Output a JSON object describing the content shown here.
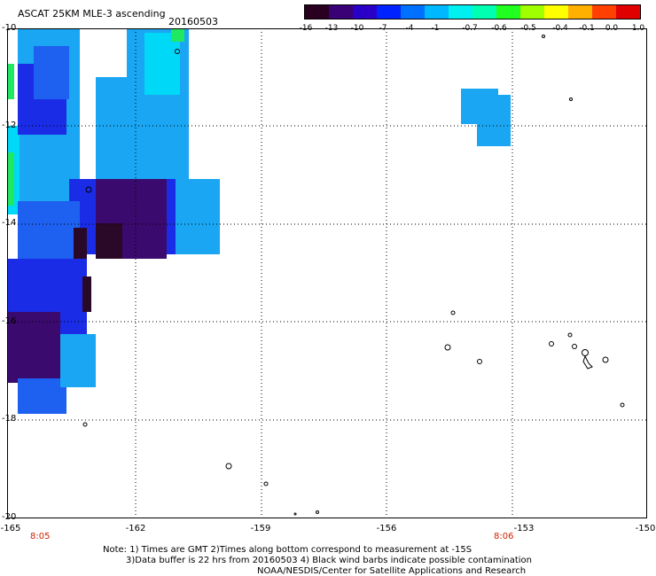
{
  "header": {
    "title": "ASCAT 25KM MLE-3 ascending",
    "date": "20160503"
  },
  "colorbar": {
    "labels": [
      "-16",
      "-13",
      "-10",
      "-7",
      "-4",
      "-1",
      "-0.7",
      "-0.6",
      "-0.5",
      "-0.4",
      "-0.1",
      "0.0",
      "1.0"
    ],
    "colors": [
      "#2a0020",
      "#3a0075",
      "#2a00c8",
      "#0022ff",
      "#0070ff",
      "#00b8ff",
      "#00f0f0",
      "#00ffb0",
      "#20ff20",
      "#a0ff00",
      "#ffff00",
      "#ffb000",
      "#ff4000",
      "#e00000"
    ]
  },
  "map": {
    "lat_labels": [
      "-10",
      "-12",
      "-14",
      "-16",
      "-18",
      "-20"
    ],
    "lon_labels": [
      "-165",
      "-162",
      "-159",
      "-156",
      "-153",
      "-150"
    ],
    "time_labels": [
      "8:05",
      "8:06"
    ],
    "grid": true,
    "swath_colors": {
      "deep_violet": "#3a0a6e",
      "dark_purple": "#2a0828",
      "blue": "#1a2ce6",
      "mid_blue": "#1e60f0",
      "light_blue": "#1aa6f2",
      "cyan": "#00d8f8",
      "green": "#20e860"
    }
  },
  "notes": {
    "line1": "Note: 1) Times are GMT 2)Times along bottom correspond to measurement at -15S",
    "line2": "3)Data buffer is 22 hrs from 20160503 4) Black wind barbs indicate possible contamination",
    "line3": "NOAA/NESDIS/Center for Satellite Applications and Research"
  }
}
